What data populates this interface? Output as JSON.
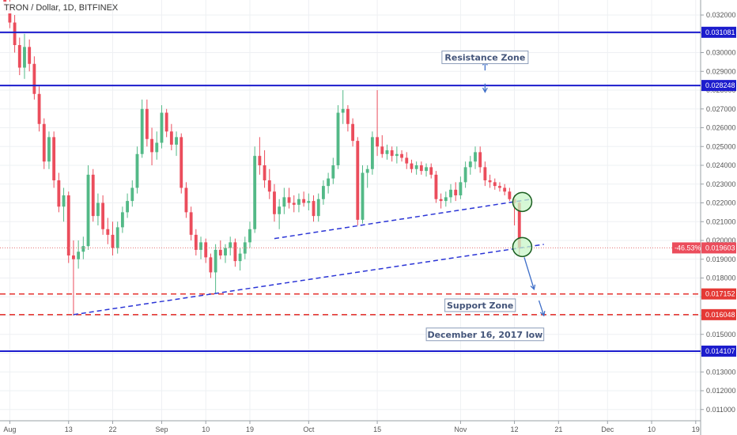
{
  "header": {
    "title": "TRON / Dollar, 1D, BITFINEX"
  },
  "colors": {
    "up": "#53b987",
    "down": "#eb4d5c",
    "level": "#1c1ccd",
    "support": "#e53935",
    "trend": "#2b35d6",
    "grid": "#eef0f3",
    "circle_fill": "#c8f5c8",
    "circle_stroke": "#1b5e20",
    "arrow": "#3f6fc8"
  },
  "chart_data": {
    "type": "candlestick",
    "symbol": "TRON / Dollar",
    "interval": "1D",
    "exchange": "BITFINEX",
    "ylim": [
      0.0104,
      0.0328
    ],
    "y_ticks": [
      "0.032000",
      "0.031000",
      "0.030000",
      "0.029000",
      "0.028000",
      "0.027000",
      "0.026000",
      "0.025000",
      "0.024000",
      "0.023000",
      "0.022000",
      "0.021000",
      "0.020000",
      "0.019000",
      "0.018000",
      "0.017000",
      "0.016000",
      "0.015000",
      "0.014000",
      "0.013000",
      "0.012000",
      "0.011000"
    ],
    "x_ticks": [
      {
        "label": "Aug",
        "date": "2018-08-01"
      },
      {
        "label": "13",
        "date": "2018-08-13"
      },
      {
        "label": "22",
        "date": "2018-08-22"
      },
      {
        "label": "Sep",
        "date": "2018-09-01"
      },
      {
        "label": "10",
        "date": "2018-09-10"
      },
      {
        "label": "19",
        "date": "2018-09-19"
      },
      {
        "label": "Oct",
        "date": "2018-10-01"
      },
      {
        "label": "15",
        "date": "2018-10-15"
      },
      {
        "label": "Nov",
        "date": "2018-11-01"
      },
      {
        "label": "12",
        "date": "2018-11-12"
      },
      {
        "label": "21",
        "date": "2018-11-21"
      },
      {
        "label": "Dec",
        "date": "2018-12-01"
      },
      {
        "label": "10",
        "date": "2018-12-10"
      },
      {
        "label": "19",
        "date": "2018-12-19"
      }
    ],
    "candles": [
      {
        "date": "2018-07-31",
        "o": 0.033,
        "h": 0.0335,
        "l": 0.0322,
        "c": 0.0325
      },
      {
        "date": "2018-08-01",
        "o": 0.0325,
        "h": 0.0329,
        "l": 0.0313,
        "c": 0.0316
      },
      {
        "date": "2018-08-02",
        "o": 0.0316,
        "h": 0.032,
        "l": 0.03,
        "c": 0.0304
      },
      {
        "date": "2018-08-03",
        "o": 0.0304,
        "h": 0.0308,
        "l": 0.0288,
        "c": 0.0292
      },
      {
        "date": "2018-08-04",
        "o": 0.0292,
        "h": 0.031,
        "l": 0.0286,
        "c": 0.0303
      },
      {
        "date": "2018-08-05",
        "o": 0.0303,
        "h": 0.0307,
        "l": 0.029,
        "c": 0.0294
      },
      {
        "date": "2018-08-06",
        "o": 0.0294,
        "h": 0.0298,
        "l": 0.0275,
        "c": 0.0278
      },
      {
        "date": "2018-08-07",
        "o": 0.0278,
        "h": 0.0282,
        "l": 0.0258,
        "c": 0.0262
      },
      {
        "date": "2018-08-08",
        "o": 0.0262,
        "h": 0.0265,
        "l": 0.0238,
        "c": 0.0242
      },
      {
        "date": "2018-08-09",
        "o": 0.0242,
        "h": 0.0258,
        "l": 0.0238,
        "c": 0.0255
      },
      {
        "date": "2018-08-10",
        "o": 0.0255,
        "h": 0.0258,
        "l": 0.0228,
        "c": 0.0232
      },
      {
        "date": "2018-08-11",
        "o": 0.0232,
        "h": 0.0236,
        "l": 0.0215,
        "c": 0.0218
      },
      {
        "date": "2018-08-12",
        "o": 0.0218,
        "h": 0.0228,
        "l": 0.021,
        "c": 0.0224
      },
      {
        "date": "2018-08-13",
        "o": 0.0224,
        "h": 0.0226,
        "l": 0.0188,
        "c": 0.0192
      },
      {
        "date": "2018-08-14",
        "o": 0.0192,
        "h": 0.02,
        "l": 0.016,
        "c": 0.019
      },
      {
        "date": "2018-08-15",
        "o": 0.019,
        "h": 0.02,
        "l": 0.0185,
        "c": 0.0194
      },
      {
        "date": "2018-08-16",
        "o": 0.0194,
        "h": 0.0202,
        "l": 0.019,
        "c": 0.0197
      },
      {
        "date": "2018-08-17",
        "o": 0.0197,
        "h": 0.024,
        "l": 0.0195,
        "c": 0.0235
      },
      {
        "date": "2018-08-18",
        "o": 0.0235,
        "h": 0.0238,
        "l": 0.021,
        "c": 0.0213
      },
      {
        "date": "2018-08-19",
        "o": 0.0213,
        "h": 0.0225,
        "l": 0.0208,
        "c": 0.022
      },
      {
        "date": "2018-08-20",
        "o": 0.022,
        "h": 0.0224,
        "l": 0.0203,
        "c": 0.0206
      },
      {
        "date": "2018-08-21",
        "o": 0.0206,
        "h": 0.0212,
        "l": 0.0198,
        "c": 0.0203
      },
      {
        "date": "2018-08-22",
        "o": 0.0203,
        "h": 0.021,
        "l": 0.0192,
        "c": 0.0196
      },
      {
        "date": "2018-08-23",
        "o": 0.0196,
        "h": 0.021,
        "l": 0.0193,
        "c": 0.0207
      },
      {
        "date": "2018-08-24",
        "o": 0.0207,
        "h": 0.0218,
        "l": 0.0204,
        "c": 0.0215
      },
      {
        "date": "2018-08-25",
        "o": 0.0215,
        "h": 0.0225,
        "l": 0.0212,
        "c": 0.0221
      },
      {
        "date": "2018-08-26",
        "o": 0.0221,
        "h": 0.0232,
        "l": 0.0218,
        "c": 0.0228
      },
      {
        "date": "2018-08-27",
        "o": 0.0228,
        "h": 0.025,
        "l": 0.0225,
        "c": 0.0246
      },
      {
        "date": "2018-08-28",
        "o": 0.0246,
        "h": 0.0275,
        "l": 0.0244,
        "c": 0.027
      },
      {
        "date": "2018-08-29",
        "o": 0.027,
        "h": 0.0275,
        "l": 0.025,
        "c": 0.0254
      },
      {
        "date": "2018-08-30",
        "o": 0.0254,
        "h": 0.026,
        "l": 0.024,
        "c": 0.0247
      },
      {
        "date": "2018-08-31",
        "o": 0.0247,
        "h": 0.0258,
        "l": 0.0243,
        "c": 0.0252
      },
      {
        "date": "2018-09-01",
        "o": 0.0252,
        "h": 0.0272,
        "l": 0.0249,
        "c": 0.0268
      },
      {
        "date": "2018-09-02",
        "o": 0.0268,
        "h": 0.027,
        "l": 0.0255,
        "c": 0.0258
      },
      {
        "date": "2018-09-03",
        "o": 0.0258,
        "h": 0.0262,
        "l": 0.0248,
        "c": 0.0251
      },
      {
        "date": "2018-09-04",
        "o": 0.0251,
        "h": 0.0258,
        "l": 0.0245,
        "c": 0.0255
      },
      {
        "date": "2018-09-05",
        "o": 0.0255,
        "h": 0.0257,
        "l": 0.0225,
        "c": 0.0228
      },
      {
        "date": "2018-09-06",
        "o": 0.0228,
        "h": 0.0231,
        "l": 0.0212,
        "c": 0.0215
      },
      {
        "date": "2018-09-07",
        "o": 0.0215,
        "h": 0.0218,
        "l": 0.02,
        "c": 0.0203
      },
      {
        "date": "2018-09-08",
        "o": 0.0203,
        "h": 0.0206,
        "l": 0.0192,
        "c": 0.0195
      },
      {
        "date": "2018-09-09",
        "o": 0.0195,
        "h": 0.0202,
        "l": 0.019,
        "c": 0.0199
      },
      {
        "date": "2018-09-10",
        "o": 0.0199,
        "h": 0.0201,
        "l": 0.0188,
        "c": 0.0191
      },
      {
        "date": "2018-09-11",
        "o": 0.0191,
        "h": 0.0193,
        "l": 0.018,
        "c": 0.0183
      },
      {
        "date": "2018-09-12",
        "o": 0.0183,
        "h": 0.0198,
        "l": 0.0172,
        "c": 0.0195
      },
      {
        "date": "2018-09-13",
        "o": 0.0195,
        "h": 0.02,
        "l": 0.019,
        "c": 0.0192
      },
      {
        "date": "2018-09-14",
        "o": 0.0192,
        "h": 0.0198,
        "l": 0.0188,
        "c": 0.0196
      },
      {
        "date": "2018-09-15",
        "o": 0.0196,
        "h": 0.0202,
        "l": 0.0192,
        "c": 0.0199
      },
      {
        "date": "2018-09-16",
        "o": 0.0199,
        "h": 0.0201,
        "l": 0.0186,
        "c": 0.0189
      },
      {
        "date": "2018-09-17",
        "o": 0.0189,
        "h": 0.0196,
        "l": 0.0184,
        "c": 0.0193
      },
      {
        "date": "2018-09-18",
        "o": 0.0193,
        "h": 0.0202,
        "l": 0.019,
        "c": 0.0199
      },
      {
        "date": "2018-09-19",
        "o": 0.0199,
        "h": 0.021,
        "l": 0.0196,
        "c": 0.0206
      },
      {
        "date": "2018-09-20",
        "o": 0.0206,
        "h": 0.025,
        "l": 0.0204,
        "c": 0.0245
      },
      {
        "date": "2018-09-21",
        "o": 0.0245,
        "h": 0.0255,
        "l": 0.0235,
        "c": 0.024
      },
      {
        "date": "2018-09-22",
        "o": 0.024,
        "h": 0.0248,
        "l": 0.0228,
        "c": 0.0232
      },
      {
        "date": "2018-09-23",
        "o": 0.0232,
        "h": 0.0238,
        "l": 0.0222,
        "c": 0.0226
      },
      {
        "date": "2018-09-24",
        "o": 0.0226,
        "h": 0.023,
        "l": 0.021,
        "c": 0.0214
      },
      {
        "date": "2018-09-25",
        "o": 0.0214,
        "h": 0.0222,
        "l": 0.0206,
        "c": 0.0218
      },
      {
        "date": "2018-09-26",
        "o": 0.0218,
        "h": 0.0228,
        "l": 0.0214,
        "c": 0.0223
      },
      {
        "date": "2018-09-27",
        "o": 0.0223,
        "h": 0.0228,
        "l": 0.0217,
        "c": 0.022
      },
      {
        "date": "2018-09-28",
        "o": 0.022,
        "h": 0.0224,
        "l": 0.0215,
        "c": 0.0219
      },
      {
        "date": "2018-09-29",
        "o": 0.0219,
        "h": 0.0225,
        "l": 0.0215,
        "c": 0.0222
      },
      {
        "date": "2018-09-30",
        "o": 0.0222,
        "h": 0.0226,
        "l": 0.0218,
        "c": 0.022
      },
      {
        "date": "2018-10-01",
        "o": 0.022,
        "h": 0.0225,
        "l": 0.0216,
        "c": 0.0221
      },
      {
        "date": "2018-10-02",
        "o": 0.0221,
        "h": 0.0224,
        "l": 0.021,
        "c": 0.0213
      },
      {
        "date": "2018-10-03",
        "o": 0.0213,
        "h": 0.0225,
        "l": 0.021,
        "c": 0.0222
      },
      {
        "date": "2018-10-04",
        "o": 0.0222,
        "h": 0.0232,
        "l": 0.0219,
        "c": 0.0229
      },
      {
        "date": "2018-10-05",
        "o": 0.0229,
        "h": 0.0236,
        "l": 0.0225,
        "c": 0.0233
      },
      {
        "date": "2018-10-06",
        "o": 0.0233,
        "h": 0.0244,
        "l": 0.023,
        "c": 0.024
      },
      {
        "date": "2018-10-07",
        "o": 0.024,
        "h": 0.0272,
        "l": 0.0238,
        "c": 0.0268
      },
      {
        "date": "2018-10-08",
        "o": 0.0268,
        "h": 0.028,
        "l": 0.0262,
        "c": 0.027
      },
      {
        "date": "2018-10-09",
        "o": 0.027,
        "h": 0.0272,
        "l": 0.0258,
        "c": 0.0262
      },
      {
        "date": "2018-10-10",
        "o": 0.0262,
        "h": 0.0265,
        "l": 0.025,
        "c": 0.0253
      },
      {
        "date": "2018-10-11",
        "o": 0.0253,
        "h": 0.0255,
        "l": 0.0208,
        "c": 0.0211
      },
      {
        "date": "2018-10-12",
        "o": 0.0211,
        "h": 0.024,
        "l": 0.0209,
        "c": 0.0236
      },
      {
        "date": "2018-10-13",
        "o": 0.0236,
        "h": 0.024,
        "l": 0.0228,
        "c": 0.0238
      },
      {
        "date": "2018-10-14",
        "o": 0.0238,
        "h": 0.0258,
        "l": 0.0235,
        "c": 0.0255
      },
      {
        "date": "2018-10-15",
        "o": 0.0255,
        "h": 0.028,
        "l": 0.0245,
        "c": 0.025
      },
      {
        "date": "2018-10-16",
        "o": 0.025,
        "h": 0.0256,
        "l": 0.0244,
        "c": 0.0246
      },
      {
        "date": "2018-10-17",
        "o": 0.0246,
        "h": 0.0251,
        "l": 0.0243,
        "c": 0.0248
      },
      {
        "date": "2018-10-18",
        "o": 0.0248,
        "h": 0.025,
        "l": 0.0242,
        "c": 0.0245
      },
      {
        "date": "2018-10-19",
        "o": 0.0245,
        "h": 0.025,
        "l": 0.0241,
        "c": 0.0246
      },
      {
        "date": "2018-10-20",
        "o": 0.0246,
        "h": 0.0248,
        "l": 0.0242,
        "c": 0.0244
      },
      {
        "date": "2018-10-21",
        "o": 0.0244,
        "h": 0.0247,
        "l": 0.0238,
        "c": 0.0241
      },
      {
        "date": "2018-10-22",
        "o": 0.0241,
        "h": 0.0243,
        "l": 0.0236,
        "c": 0.0238
      },
      {
        "date": "2018-10-23",
        "o": 0.0238,
        "h": 0.0242,
        "l": 0.0235,
        "c": 0.024
      },
      {
        "date": "2018-10-24",
        "o": 0.024,
        "h": 0.0242,
        "l": 0.0235,
        "c": 0.0237
      },
      {
        "date": "2018-10-25",
        "o": 0.0237,
        "h": 0.0241,
        "l": 0.0234,
        "c": 0.0239
      },
      {
        "date": "2018-10-26",
        "o": 0.0239,
        "h": 0.0241,
        "l": 0.0233,
        "c": 0.0235
      },
      {
        "date": "2018-10-27",
        "o": 0.0235,
        "h": 0.0237,
        "l": 0.022,
        "c": 0.0222
      },
      {
        "date": "2018-10-28",
        "o": 0.0222,
        "h": 0.0225,
        "l": 0.0217,
        "c": 0.0221
      },
      {
        "date": "2018-10-29",
        "o": 0.0221,
        "h": 0.0226,
        "l": 0.0218,
        "c": 0.0223
      },
      {
        "date": "2018-10-30",
        "o": 0.0223,
        "h": 0.023,
        "l": 0.022,
        "c": 0.0227
      },
      {
        "date": "2018-10-31",
        "o": 0.0227,
        "h": 0.0231,
        "l": 0.0221,
        "c": 0.0224
      },
      {
        "date": "2018-11-01",
        "o": 0.0224,
        "h": 0.0234,
        "l": 0.0222,
        "c": 0.0231
      },
      {
        "date": "2018-11-02",
        "o": 0.0231,
        "h": 0.0242,
        "l": 0.0228,
        "c": 0.0239
      },
      {
        "date": "2018-11-03",
        "o": 0.0239,
        "h": 0.0245,
        "l": 0.0235,
        "c": 0.0242
      },
      {
        "date": "2018-11-04",
        "o": 0.0242,
        "h": 0.025,
        "l": 0.0238,
        "c": 0.0247
      },
      {
        "date": "2018-11-05",
        "o": 0.0247,
        "h": 0.025,
        "l": 0.0236,
        "c": 0.0239
      },
      {
        "date": "2018-11-06",
        "o": 0.0239,
        "h": 0.0242,
        "l": 0.0229,
        "c": 0.0232
      },
      {
        "date": "2018-11-07",
        "o": 0.0232,
        "h": 0.0235,
        "l": 0.0228,
        "c": 0.0231
      },
      {
        "date": "2018-11-08",
        "o": 0.0231,
        "h": 0.0233,
        "l": 0.0227,
        "c": 0.0229
      },
      {
        "date": "2018-11-09",
        "o": 0.0229,
        "h": 0.0231,
        "l": 0.0226,
        "c": 0.0228
      },
      {
        "date": "2018-11-10",
        "o": 0.0228,
        "h": 0.023,
        "l": 0.0224,
        "c": 0.0226
      },
      {
        "date": "2018-11-11",
        "o": 0.0226,
        "h": 0.0228,
        "l": 0.0221,
        "c": 0.0222
      },
      {
        "date": "2018-11-12",
        "o": 0.0222,
        "h": 0.0224,
        "l": 0.0208,
        "c": 0.022
      },
      {
        "date": "2018-11-13",
        "o": 0.022,
        "h": 0.0221,
        "l": 0.0192,
        "c": 0.0196
      }
    ],
    "horizontal_levels": [
      {
        "value": 0.031081,
        "label": "0.031081",
        "style": "solid"
      },
      {
        "value": 0.028248,
        "label": "0.028248",
        "style": "solid"
      },
      {
        "value": 0.017152,
        "label": "0.017152",
        "style": "dashed"
      },
      {
        "value": 0.016048,
        "label": "0.016048",
        "style": "dashed"
      },
      {
        "value": 0.014107,
        "label": "0.014107",
        "style": "solid"
      }
    ],
    "current_price": {
      "value": 0.019603,
      "label": "0.019603",
      "change": "-46.53%"
    },
    "trendlines": [
      {
        "from": {
          "date": "2018-09-24",
          "value": 0.0201
        },
        "to": {
          "date": "2018-11-15",
          "value": 0.02218
        }
      },
      {
        "from": {
          "date": "2018-08-14",
          "value": 0.01605
        },
        "to": {
          "date": "2018-11-18",
          "value": 0.01979
        }
      }
    ],
    "circles": [
      {
        "date": "2018-11-13",
        "value": 0.02205
      },
      {
        "date": "2018-11-13",
        "value": 0.01965
      }
    ],
    "arrows": [
      {
        "from": {
          "date": "2018-11-06",
          "value": 0.02905
        },
        "to": {
          "date": "2018-11-06",
          "value": 0.02955
        }
      },
      {
        "from": {
          "date": "2018-11-06",
          "value": 0.02835
        },
        "to": {
          "date": "2018-11-06",
          "value": 0.0279
        }
      },
      {
        "from": {
          "date": "2018-11-14",
          "value": 0.0191
        },
        "to": {
          "date": "2018-11-16",
          "value": 0.0174
        }
      },
      {
        "from": {
          "date": "2018-11-17",
          "value": 0.0168
        },
        "to": {
          "date": "2018-11-18",
          "value": 0.016
        }
      }
    ],
    "annotations": [
      {
        "text": "Resistance Zone",
        "date": "2018-11-06",
        "value": 0.02975
      },
      {
        "text": "Support Zone",
        "date": "2018-11-05",
        "value": 0.01655
      },
      {
        "text": "December 16, 2017 low",
        "date": "2018-11-06",
        "value": 0.015
      }
    ],
    "x_range": [
      "2018-07-30",
      "2018-12-20"
    ]
  }
}
